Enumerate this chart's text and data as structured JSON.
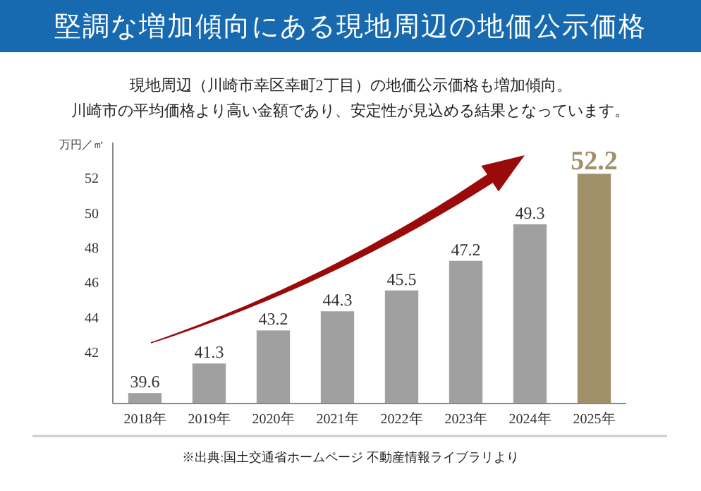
{
  "chart_data": {
    "type": "bar",
    "title": "堅調な増加傾向にある現地周辺の地価公示価格",
    "subtitle": "現地周辺（川崎市幸区幸町2丁目）の地価公示価格も増加傾向。川崎市の平均価格より高い金額であり、安定性が見込める結果となっています。",
    "ylabel": "万円／㎡",
    "categories": [
      "2018年",
      "2019年",
      "2020年",
      "2021年",
      "2022年",
      "2023年",
      "2024年",
      "2025年"
    ],
    "values": [
      39.6,
      41.3,
      43.2,
      44.3,
      45.5,
      47.2,
      49.3,
      52.2
    ],
    "colors": [
      "#a0a0a0",
      "#a0a0a0",
      "#a0a0a0",
      "#a0a0a0",
      "#a0a0a0",
      "#a0a0a0",
      "#a0a0a0",
      "#a08f68"
    ],
    "ylim": [
      39,
      54
    ],
    "yticks": [
      42,
      44,
      46,
      48,
      50,
      52
    ],
    "data_labels": true,
    "grid": false,
    "annotations": [
      "※出典:国土交通省ホームページ 不動産情報ライブラリより"
    ]
  }
}
